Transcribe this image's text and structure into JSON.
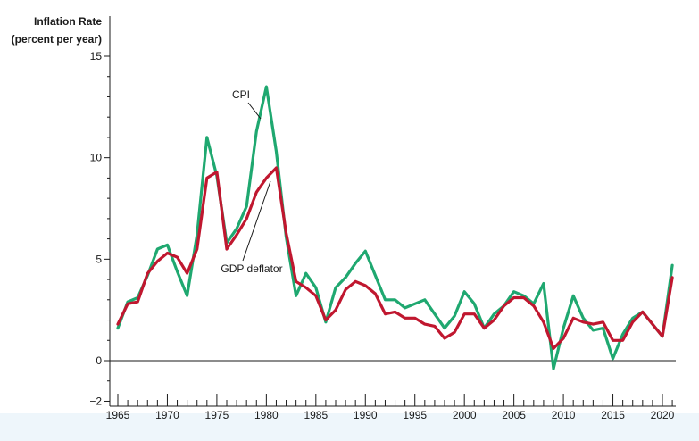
{
  "chart_data": {
    "type": "line",
    "ylabel": [
      "Inflation Rate",
      "(percent per year)"
    ],
    "xlabel": "",
    "xlim": [
      1964.8,
      2021.2
    ],
    "ylim": [
      -2,
      15.5
    ],
    "x_ticks": [
      1965,
      1970,
      1975,
      1980,
      1985,
      1990,
      1995,
      2000,
      2005,
      2010,
      2015,
      2020
    ],
    "y_ticks": [
      -2,
      0,
      5,
      10,
      15
    ],
    "y_tick_labels": [
      "−2",
      "0",
      "5",
      "10",
      "15"
    ],
    "x": [
      1965,
      1966,
      1967,
      1968,
      1969,
      1970,
      1971,
      1972,
      1973,
      1974,
      1975,
      1976,
      1977,
      1978,
      1979,
      1980,
      1981,
      1982,
      1983,
      1984,
      1985,
      1986,
      1987,
      1988,
      1989,
      1990,
      1991,
      1992,
      1993,
      1994,
      1995,
      1996,
      1997,
      1998,
      1999,
      2000,
      2001,
      2002,
      2003,
      2004,
      2005,
      2006,
      2007,
      2008,
      2009,
      2010,
      2011,
      2012,
      2013,
      2014,
      2015,
      2016,
      2017,
      2018,
      2019,
      2020,
      2021
    ],
    "series": [
      {
        "name": "CPI",
        "color": "#1fa870",
        "values": [
          1.6,
          2.9,
          3.1,
          4.2,
          5.5,
          5.7,
          4.4,
          3.2,
          6.2,
          11.0,
          9.1,
          5.8,
          6.5,
          7.6,
          11.3,
          13.5,
          10.3,
          6.1,
          3.2,
          4.3,
          3.6,
          1.9,
          3.6,
          4.1,
          4.8,
          5.4,
          4.2,
          3.0,
          3.0,
          2.6,
          2.8,
          3.0,
          2.3,
          1.6,
          2.2,
          3.4,
          2.8,
          1.6,
          2.3,
          2.7,
          3.4,
          3.2,
          2.8,
          3.8,
          -0.4,
          1.6,
          3.2,
          2.1,
          1.5,
          1.6,
          0.1,
          1.3,
          2.1,
          2.4,
          1.8,
          1.2,
          4.7
        ]
      },
      {
        "name": "GDP deflator",
        "color": "#c0172f",
        "values": [
          1.8,
          2.8,
          2.9,
          4.3,
          4.9,
          5.3,
          5.1,
          4.3,
          5.5,
          9.0,
          9.3,
          5.5,
          6.2,
          7.0,
          8.3,
          9.0,
          9.5,
          6.3,
          3.9,
          3.6,
          3.2,
          2.0,
          2.5,
          3.5,
          3.9,
          3.7,
          3.3,
          2.3,
          2.4,
          2.1,
          2.1,
          1.8,
          1.7,
          1.1,
          1.4,
          2.3,
          2.3,
          1.6,
          2.0,
          2.7,
          3.1,
          3.1,
          2.7,
          1.9,
          0.6,
          1.1,
          2.1,
          1.9,
          1.8,
          1.9,
          1.0,
          1.0,
          1.9,
          2.4,
          1.8,
          1.2,
          4.1
        ]
      }
    ],
    "annotations": [
      {
        "text": "CPI",
        "series": "CPI"
      },
      {
        "text": "GDP deflator",
        "series": "GDP deflator"
      }
    ]
  }
}
